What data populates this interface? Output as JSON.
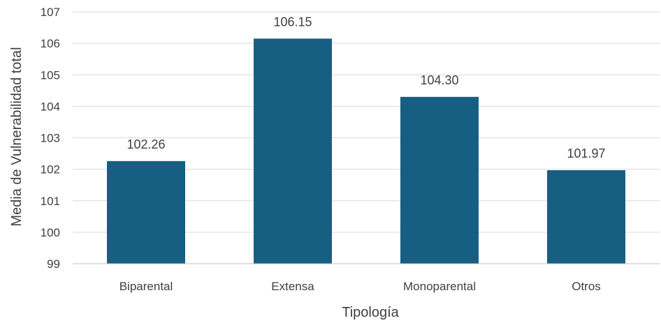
{
  "chart_data": {
    "type": "bar",
    "categories": [
      "Biparental",
      "Extensa",
      "Monoparental",
      "Otros"
    ],
    "values": [
      102.26,
      106.15,
      104.3,
      101.97
    ],
    "data_labels": [
      "102.26",
      "106.15",
      "104.30",
      "101.97"
    ],
    "title": "",
    "xlabel": "Tipología",
    "ylabel": "Media de Vulnerabilidad total",
    "ylim": [
      99,
      107
    ],
    "yticks": [
      99,
      100,
      101,
      102,
      103,
      104,
      105,
      106,
      107
    ],
    "grid": "horizontal",
    "legend": "none",
    "bar_color": "#175f82",
    "gridline_color": "#d9d9d9",
    "axis_color": "#bfbfbf",
    "text_color": "#404040"
  }
}
